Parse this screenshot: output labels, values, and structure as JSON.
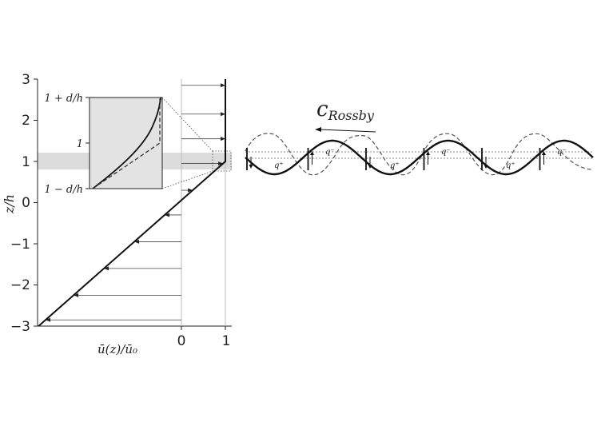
{
  "profile_panel": {
    "y_axis_label": "z/h",
    "x_axis_label": "ū(z)/ū₀",
    "y_ticks": [
      "3",
      "2",
      "1",
      "0",
      "−1",
      "−2",
      "−3"
    ],
    "x_ticks": [
      "0",
      "1"
    ],
    "shaded_band_z": [
      0.8,
      1.2
    ],
    "profile_points": [
      [
        -3.25,
        -3
      ],
      [
        1,
        1
      ],
      [
        1,
        3
      ]
    ],
    "arrow_levels_z": [
      -2.85,
      -2.25,
      -1.6,
      -0.95,
      -0.3,
      0.3,
      0.95,
      1.55,
      2.15,
      2.85
    ]
  },
  "inset": {
    "tick_labels": [
      "1 + d/h",
      "1",
      "1 − d/h"
    ]
  },
  "wave_panel": {
    "title": "c",
    "title_subscript": "Rossby",
    "q_minus_label": "q⁻",
    "q_plus_label": "q⁺",
    "wavelength_count": 3
  },
  "colors": {
    "line": "#111111",
    "band": "#dcdcdc",
    "inset_fill": "#e3e3e3"
  }
}
